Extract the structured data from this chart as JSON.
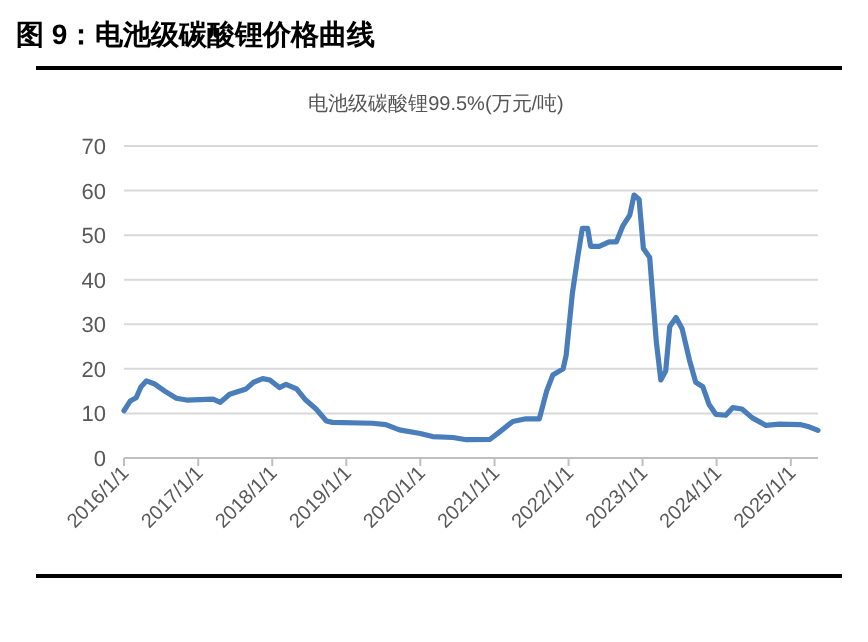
{
  "chart_data": {
    "type": "line",
    "title": "图 9：电池级碳酸锂价格曲线",
    "subtitle": "电池级碳酸锂99.5%(万元/吨)",
    "x": [
      "2016-01-01",
      "2016-02-01",
      "2016-03-01",
      "2016-03-25",
      "2016-04-20",
      "2016-06-01",
      "2016-07-20",
      "2016-09-15",
      "2016-11-05",
      "2017-03-15",
      "2017-04-20",
      "2017-06-05",
      "2017-08-25",
      "2017-10-01",
      "2017-11-15",
      "2017-12-20",
      "2018-02-05",
      "2018-03-10",
      "2018-05-01",
      "2018-06-15",
      "2018-08-05",
      "2018-09-25",
      "2018-10-25",
      "2019-05-10",
      "2019-07-15",
      "2019-09-20",
      "2020-01-01",
      "2020-03-01",
      "2020-06-10",
      "2020-08-15",
      "2020-12-10",
      "2021-01-25",
      "2021-04-01",
      "2021-06-05",
      "2021-08-10",
      "2021-09-15",
      "2021-10-15",
      "2021-12-05",
      "2021-12-20",
      "2022-01-20",
      "2022-02-15",
      "2022-03-10",
      "2022-04-05",
      "2022-04-20",
      "2022-06-01",
      "2022-07-20",
      "2022-08-25",
      "2022-09-25",
      "2022-10-30",
      "2022-11-20",
      "2022-12-15",
      "2023-01-05",
      "2023-02-05",
      "2023-03-10",
      "2023-04-01",
      "2023-04-25",
      "2023-05-15",
      "2023-06-15",
      "2023-07-15",
      "2023-08-20",
      "2023-09-20",
      "2023-10-25",
      "2023-11-25",
      "2023-12-28",
      "2024-02-15",
      "2024-03-20",
      "2024-05-05",
      "2024-06-25",
      "2024-09-01",
      "2024-11-05",
      "2025-02-15",
      "2025-04-01",
      "2025-05-15"
    ],
    "series": [
      {
        "color": "#4a7ebb",
        "values": [
          10.6,
          12.8,
          13.5,
          16,
          17.3,
          16.6,
          15,
          13.4,
          13,
          13.2,
          12.5,
          14.3,
          15.5,
          17,
          17.8,
          17.5,
          15.8,
          16.5,
          15.5,
          13,
          11,
          8.3,
          8,
          7.8,
          7.5,
          6.3,
          5.5,
          4.8,
          4.6,
          4.1,
          4.2,
          5.8,
          8.2,
          8.8,
          8.8,
          15,
          18.6,
          20,
          23,
          37,
          45,
          51.5,
          51.5,
          47.5,
          47.5,
          48.5,
          48.5,
          52,
          54.5,
          59,
          58,
          47,
          45,
          26,
          17.5,
          19.5,
          29.5,
          31.5,
          29,
          22,
          17,
          16,
          12,
          9.8,
          9.6,
          11.3,
          11,
          9,
          7.3,
          7.6,
          7.5,
          7,
          6.2
        ]
      }
    ],
    "xlim": [
      "2016-01-01",
      "2025-05-15"
    ],
    "xticks": [
      {
        "value": "2016-01-01",
        "label": "2016/1/1"
      },
      {
        "value": "2017-01-01",
        "label": "2017/1/1"
      },
      {
        "value": "2018-01-01",
        "label": "2018/1/1"
      },
      {
        "value": "2019-01-01",
        "label": "2019/1/1"
      },
      {
        "value": "2020-01-01",
        "label": "2020/1/1"
      },
      {
        "value": "2021-01-01",
        "label": "2021/1/1"
      },
      {
        "value": "2022-01-01",
        "label": "2022/1/1"
      },
      {
        "value": "2023-01-01",
        "label": "2023/1/1"
      },
      {
        "value": "2024-01-01",
        "label": "2024/1/1"
      },
      {
        "value": "2025-01-01",
        "label": "2025/1/1"
      }
    ],
    "ylim": [
      0,
      70
    ],
    "yticks": [
      0,
      10,
      20,
      30,
      40,
      50,
      60,
      70
    ],
    "grid": "y",
    "marker": "none",
    "line_style": "solid"
  }
}
